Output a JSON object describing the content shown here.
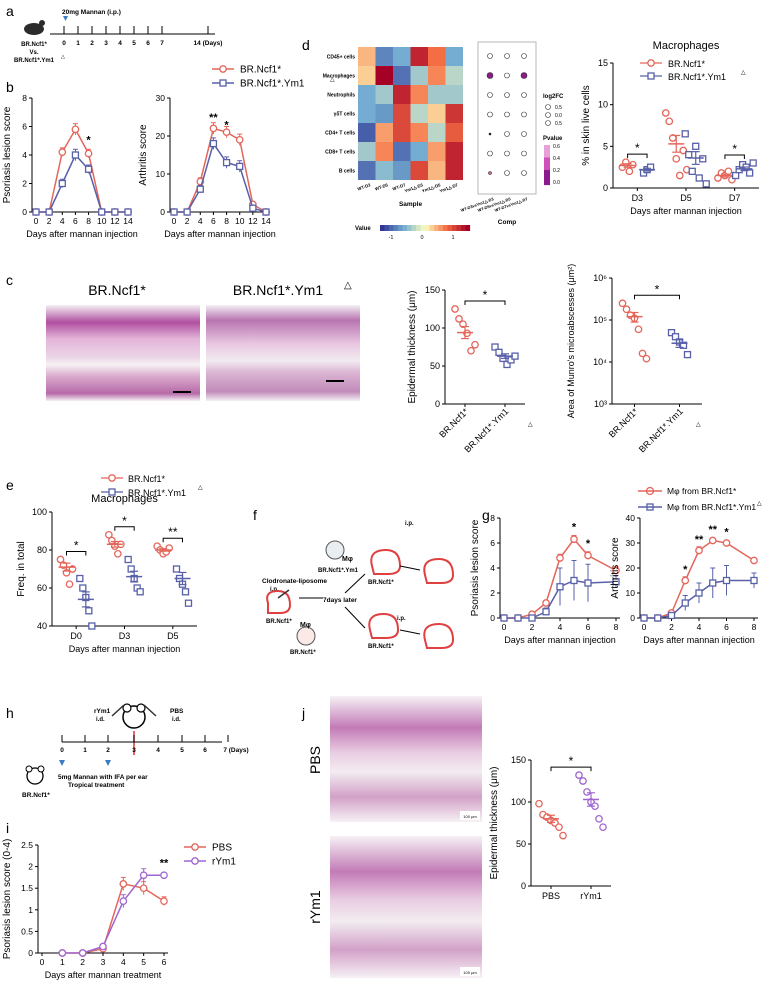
{
  "colors": {
    "red": "#e4665b",
    "blue": "#5860a8",
    "purple": "#a066d0",
    "black": "#000000"
  },
  "panel_letters": [
    "a",
    "b",
    "c",
    "d",
    "e",
    "f",
    "g",
    "h",
    "i",
    "j"
  ],
  "panel_a": {
    "title": "20mg Mannan (i.p.)",
    "mouse_label_1": "BR.Ncf1*",
    "mouse_label_vs": "Vs.",
    "mouse_label_2": "BR.Ncf1*.Ym1",
    "ticks": [
      "0",
      "1",
      "2",
      "3",
      "4",
      "5",
      "6",
      "7",
      "14 (Days)"
    ]
  },
  "panel_c": {
    "image_label_1": "BR.Ncf1*",
    "image_label_2": "BR.Ncf1*.Ym1"
  },
  "panel_d_heatmap": {
    "rows": [
      "CD45+ cells",
      "Macrophages",
      "Neutrophils",
      "γδT cells",
      "CD4+ T cells",
      "CD8+ T cells",
      "B cells"
    ],
    "cols": [
      "WT-D3",
      "WT-D5",
      "WT-D7",
      "Ym1△-D3",
      "Ym1△-D5",
      "Ym1△-D7"
    ],
    "xlabel": "Sample",
    "legend_title": "Value",
    "legend_ticks": [
      "-1",
      "0",
      "1"
    ],
    "dot_cols": [
      "WT-D3vsYm1△-D3",
      "WT-D5vsYm1△-D5",
      "WT-D7vsYm1△-D7"
    ],
    "dot_xlabel": "Comp",
    "log2fc_title": "log2FC",
    "log2fc_levels": [
      "0.5",
      "0.0",
      "0.5"
    ],
    "pvalue_title": "Pvalue",
    "pvalue_ticks": [
      "0.6",
      "0.4",
      "0.2",
      "0.0"
    ]
  },
  "panel_g_legend": {
    "item1": "Mφ from BR.Ncf1*",
    "item2": "Mφ from BR.Ncf1*.Ym1"
  },
  "panel_f": {
    "clodronate": "Clodronate-liposome",
    "ip": "i.p.",
    "mphi": "Mφ",
    "donor_ko": "BR.Ncf1*.Ym1",
    "recipient": "BR.Ncf1*",
    "later": "7days later"
  },
  "panel_h": {
    "rym1": "rYm1",
    "id": "i.d.",
    "pbs": "PBS",
    "treatment_line1": "5mg Mannan with IFA per ear",
    "treatment_line2": "Tropical treatment",
    "mouse": "BR.Ncf1*",
    "ticks": [
      "0",
      "1",
      "2",
      "3",
      "4",
      "5",
      "6",
      "7 (Days)"
    ]
  },
  "panel_j": {
    "label_pbs": "PBS",
    "label_rym1": "rYm1",
    "scalebar": "100 μm"
  },
  "chart_data": [
    {
      "panel": "b-left",
      "type": "line",
      "x": [
        0,
        2,
        4,
        6,
        8,
        10,
        12,
        14
      ],
      "series": [
        {
          "name": "BR.Ncf1*",
          "values": [
            0,
            0,
            4.2,
            5.8,
            4.1,
            0,
            0,
            0
          ],
          "err": [
            0,
            0,
            0.3,
            0.4,
            0.3,
            0,
            0,
            0
          ]
        },
        {
          "name": "BR.Ncf1*.Ym1",
          "values": [
            0,
            0,
            2.0,
            4.0,
            3.0,
            0,
            0,
            0
          ],
          "err": [
            0,
            0,
            0.3,
            0.4,
            0.3,
            0,
            0,
            0
          ]
        }
      ],
      "xlabel": "Days after mannan injection",
      "ylabel": "Psoriasis lesion score",
      "ylim": [
        0,
        8
      ],
      "yticks": [
        0,
        2,
        4,
        6,
        8
      ],
      "xticks": [
        0,
        2,
        4,
        6,
        8,
        10,
        12,
        14
      ],
      "annotations": [
        {
          "text": "*",
          "x": 8,
          "y": 4.8
        }
      ]
    },
    {
      "panel": "b-right",
      "type": "line",
      "x": [
        0,
        2,
        4,
        6,
        8,
        10,
        12,
        14
      ],
      "series": [
        {
          "name": "BR.Ncf1*",
          "values": [
            0,
            0,
            8,
            22,
            21,
            19,
            2,
            0
          ],
          "err": [
            0,
            0,
            1,
            1.5,
            1.5,
            1.5,
            0.5,
            0
          ]
        },
        {
          "name": "BR.Ncf1*.Ym1",
          "values": [
            0,
            0,
            6,
            18,
            13,
            12,
            1,
            0
          ],
          "err": [
            0,
            0,
            1,
            1.5,
            1.5,
            1.5,
            0.5,
            0
          ]
        }
      ],
      "xlabel": "Days after mannan injection",
      "ylabel": "Arthritis score",
      "ylim": [
        0,
        30
      ],
      "yticks": [
        0,
        10,
        20,
        30
      ],
      "xticks": [
        0,
        2,
        4,
        6,
        8,
        10,
        12,
        14
      ],
      "annotations": [
        {
          "text": "**",
          "x": 6,
          "y": 24
        },
        {
          "text": "*",
          "x": 8,
          "y": 22
        }
      ],
      "legend": [
        "BR.Ncf1*",
        "BR.Ncf1*.Ym1"
      ]
    },
    {
      "panel": "d-right",
      "type": "scatter",
      "categories": [
        "D3",
        "D5",
        "D7"
      ],
      "series": [
        {
          "name": "BR.Ncf1*",
          "points": [
            [
              2.5,
              3.1,
              2.0,
              2.8
            ],
            [
              9,
              8,
              6,
              3.5,
              1.5,
              4.5,
              2.2
            ],
            [
              1.2,
              1.8,
              1.5,
              2.0,
              1.0
            ]
          ],
          "mean": [
            2.7,
            5.3,
            1.5
          ]
        },
        {
          "name": "BR.Ncf1*.Ym1",
          "points": [
            [
              1.8,
              2.2,
              2.5
            ],
            [
              6.5,
              4,
              2,
              5,
              1.2,
              3.5,
              0.5
            ],
            [
              1.5,
              2.2,
              2.8,
              2.5,
              1.8,
              3.0
            ]
          ],
          "mean": [
            2.2,
            3.6,
            2.3
          ]
        }
      ],
      "title": "Macrophages",
      "xlabel": "Days after mannan injection",
      "ylabel": "% in skin live cells",
      "ylim": [
        0,
        15
      ],
      "yticks": [
        0,
        5,
        10,
        15
      ],
      "annotations": [
        {
          "text": "*",
          "pair": 0
        },
        {
          "text": "*",
          "pair": 2
        }
      ]
    },
    {
      "panel": "c-thickness",
      "type": "scatter",
      "categories": [
        "BR.Ncf1*",
        "BR.Ncf1*.Ym1"
      ],
      "series": [
        {
          "name": "BR.Ncf1*",
          "points": [
            125,
            112,
            105,
            93,
            70,
            78
          ],
          "mean": 94
        },
        {
          "name": "BR.Ncf1*.Ym1",
          "points": [
            75,
            68,
            60,
            52,
            58,
            63
          ],
          "mean": 63
        }
      ],
      "ylabel": "Epidermal thickness (μm)",
      "ylim": [
        0,
        150
      ],
      "yticks": [
        0,
        50,
        100,
        150
      ],
      "annotations": [
        {
          "text": "*"
        }
      ]
    },
    {
      "panel": "c-munro",
      "type": "scatter",
      "yscale": "log",
      "categories": [
        "BR.Ncf1*",
        "BR.Ncf1*.Ym1"
      ],
      "series": [
        {
          "name": "BR.Ncf1*",
          "points": [
            250000,
            180000,
            130000,
            110000,
            60000,
            16000,
            12000
          ],
          "mean": 120000
        },
        {
          "name": "BR.Ncf1*.Ym1",
          "points": [
            50000,
            40000,
            30000,
            25000,
            15000
          ],
          "mean": 28000
        }
      ],
      "ylabel": "Area of Munro's microabscesses (μm²)",
      "ylim": [
        1000,
        1000000
      ],
      "yticks": [
        "10³",
        "10⁴",
        "10⁵",
        "10⁶"
      ],
      "annotations": [
        {
          "text": "*"
        }
      ]
    },
    {
      "panel": "e",
      "type": "scatter",
      "categories": [
        "D0",
        "D3",
        "D5"
      ],
      "series": [
        {
          "name": "BR.Ncf1*",
          "points": [
            [
              75,
              72,
              68,
              62,
              70
            ],
            [
              88,
              85,
              82,
              78,
              83
            ],
            [
              82,
              80,
              78,
              79,
              81
            ]
          ],
          "mean": [
            71,
            83,
            80
          ]
        },
        {
          "name": "BR.Ncf1*.Ym1",
          "points": [
            [
              65,
              60,
              55,
              48,
              40
            ],
            [
              75,
              70,
              65,
              60,
              58
            ],
            [
              70,
              65,
              62,
              58,
              52
            ]
          ],
          "mean": [
            54,
            66,
            65
          ]
        }
      ],
      "title": "Macrophages",
      "xlabel": "Days after mannan injection",
      "ylabel": "Freq. in total",
      "ylim": [
        40,
        100
      ],
      "yticks": [
        40,
        60,
        80,
        100
      ],
      "annotations": [
        {
          "text": "*",
          "pair": 0
        },
        {
          "text": "*",
          "pair": 1
        },
        {
          "text": "**",
          "pair": 2
        }
      ],
      "legend": [
        "BR.Ncf1*",
        "BR.Ncf1*.Ym1"
      ]
    },
    {
      "panel": "g-left",
      "type": "line",
      "x": [
        0,
        1,
        2,
        3,
        4,
        5,
        6,
        8
      ],
      "series": [
        {
          "name": "Mφ from BR.Ncf1*",
          "values": [
            0,
            0,
            0.3,
            1.2,
            4.8,
            6.3,
            5.0,
            3.8
          ],
          "err": [
            0,
            0,
            0.1,
            0.2,
            0.3,
            0.3,
            0.3,
            0.3
          ]
        },
        {
          "name": "Mφ from BR.Ncf1*.Ym1",
          "values": [
            0,
            0,
            0,
            0.5,
            2.5,
            3.0,
            2.8,
            2.9
          ],
          "err": [
            0,
            0,
            0,
            0.3,
            1.5,
            1.6,
            1.5,
            0.5
          ]
        }
      ],
      "xlabel": "Days after mannan injection",
      "ylabel": "Psoriasis lesion score",
      "ylim": [
        0,
        8
      ],
      "yticks": [
        0,
        2,
        4,
        6,
        8
      ],
      "xticks": [
        0,
        2,
        4,
        6,
        8
      ],
      "annotations": [
        {
          "text": "*",
          "x": 5,
          "y": 7.0
        },
        {
          "text": "*",
          "x": 6,
          "y": 5.7
        }
      ]
    },
    {
      "panel": "g-right",
      "type": "line",
      "x": [
        0,
        1,
        2,
        3,
        4,
        5,
        6,
        8
      ],
      "series": [
        {
          "name": "Mφ from BR.Ncf1*",
          "values": [
            0,
            0,
            2,
            15,
            27,
            31,
            30,
            23
          ],
          "err": [
            0,
            0,
            1,
            1.5,
            1.5,
            1,
            1,
            1
          ]
        },
        {
          "name": "Mφ from BR.Ncf1*.Ym1",
          "values": [
            0,
            0,
            1,
            6,
            10,
            14,
            15,
            15
          ],
          "err": [
            0,
            0,
            1,
            3,
            4,
            6,
            6,
            3
          ]
        }
      ],
      "xlabel": "Days after mannan injection",
      "ylabel": "Arthritis score",
      "ylim": [
        0,
        40
      ],
      "yticks": [
        0,
        10,
        20,
        30,
        40
      ],
      "xticks": [
        0,
        2,
        4,
        6,
        8
      ],
      "annotations": [
        {
          "text": "*",
          "x": 3,
          "y": 18
        },
        {
          "text": "**",
          "x": 4,
          "y": 30
        },
        {
          "text": "**",
          "x": 5,
          "y": 34
        },
        {
          "text": "*",
          "x": 6,
          "y": 33
        }
      ]
    },
    {
      "panel": "i",
      "type": "line",
      "x": [
        1,
        2,
        3,
        4,
        5,
        6
      ],
      "series": [
        {
          "name": "PBS",
          "values": [
            0,
            0,
            0.1,
            1.6,
            1.5,
            1.2
          ],
          "err": [
            0,
            0,
            0.05,
            0.15,
            0.15,
            0.1
          ]
        },
        {
          "name": "rYm1",
          "values": [
            0,
            0,
            0.15,
            1.2,
            1.8,
            1.8
          ],
          "err": [
            0,
            0,
            0.05,
            0.15,
            0.15,
            0.05
          ]
        }
      ],
      "xlabel": "Days after mannan treatment",
      "ylabel": "Psoriasis lesion score (0-4)",
      "ylim": [
        0,
        2.5
      ],
      "yticks": [
        0.0,
        0.5,
        1.0,
        1.5,
        2.0,
        2.5
      ],
      "xticks": [
        0,
        1,
        2,
        3,
        4,
        5,
        6
      ],
      "annotations": [
        {
          "text": "**",
          "x": 6,
          "y": 2.0
        }
      ],
      "legend": [
        "PBS",
        "rYm1"
      ]
    },
    {
      "panel": "j",
      "type": "scatter",
      "categories": [
        "PBS",
        "rYm1"
      ],
      "series": [
        {
          "name": "PBS",
          "points": [
            98,
            85,
            82,
            78,
            75,
            70,
            60
          ],
          "mean": 80
        },
        {
          "name": "rYm1",
          "points": [
            132,
            125,
            112,
            100,
            95,
            80,
            70
          ],
          "mean": 103
        }
      ],
      "ylabel": "Epidermal thickness (μm)",
      "ylim": [
        0,
        150
      ],
      "yticks": [
        0,
        50,
        100,
        150
      ],
      "annotations": [
        {
          "text": "*"
        }
      ]
    }
  ]
}
